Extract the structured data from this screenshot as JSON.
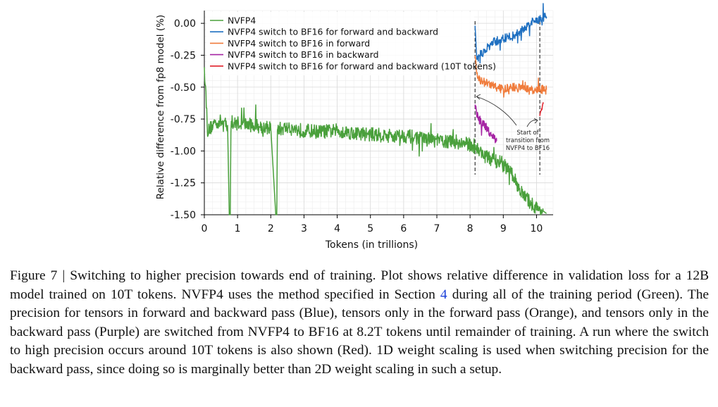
{
  "chart_data": {
    "type": "line",
    "xlabel": "Tokens (in trillions)",
    "ylabel": "Relative difference from fp8 model (%)",
    "xlim": [
      0,
      10.5
    ],
    "ylim": [
      -1.5,
      0.1
    ],
    "xticks": [
      0,
      1,
      2,
      3,
      4,
      5,
      6,
      7,
      8,
      9,
      10
    ],
    "yticks": [
      0.0,
      -0.25,
      -0.5,
      -0.75,
      -1.0,
      -1.25,
      -1.5
    ],
    "ytick_labels": [
      "0.00",
      "-0.25",
      "-0.50",
      "-0.75",
      "-1.00",
      "-1.25",
      "-1.50"
    ],
    "grid": true,
    "legend_position": "top-left",
    "series": [
      {
        "name": "NVFP4",
        "color": "#4aa03c",
        "x": [
          0,
          0.1,
          0.3,
          0.5,
          0.7,
          0.75,
          0.78,
          0.8,
          1.0,
          1.5,
          2.0,
          2.15,
          2.18,
          2.2,
          2.5,
          3.0,
          3.5,
          4.0,
          4.5,
          5.0,
          5.5,
          6.0,
          6.5,
          7.0,
          7.5,
          8.0,
          8.2,
          8.5,
          9.0,
          9.3,
          9.6,
          9.8,
          10.0,
          10.2,
          10.3
        ],
        "y": [
          -0.3,
          -0.85,
          -0.78,
          -0.77,
          -0.8,
          -1.5,
          -1.5,
          -0.8,
          -0.78,
          -0.8,
          -0.82,
          -1.5,
          -1.5,
          -0.83,
          -0.82,
          -0.84,
          -0.85,
          -0.84,
          -0.86,
          -0.87,
          -0.88,
          -0.88,
          -0.9,
          -0.92,
          -0.93,
          -0.95,
          -0.98,
          -1.05,
          -1.1,
          -1.2,
          -1.35,
          -1.4,
          -1.45,
          -1.47,
          -1.49
        ]
      },
      {
        "name": "NVFP4 switch to BF16 for forward and backward",
        "color": "#1f70c1",
        "x": [
          8.15,
          8.2,
          8.3,
          8.5,
          8.7,
          9.0,
          9.3,
          9.6,
          9.8,
          10.0,
          10.2,
          10.3
        ],
        "y": [
          -0.02,
          -0.3,
          -0.25,
          -0.2,
          -0.15,
          -0.12,
          -0.1,
          -0.05,
          0.0,
          0.02,
          0.05,
          0.05
        ]
      },
      {
        "name": "NVFP4 switch to BF16 in forward",
        "color": "#f07c3c",
        "x": [
          8.15,
          8.2,
          8.3,
          8.5,
          8.8,
          9.0,
          9.3,
          9.6,
          9.9,
          10.1,
          10.3
        ],
        "y": [
          -0.25,
          -0.38,
          -0.45,
          -0.47,
          -0.5,
          -0.52,
          -0.5,
          -0.51,
          -0.53,
          -0.52,
          -0.52
        ]
      },
      {
        "name": "NVFP4 switch to BF16 in backward",
        "color": "#a626a4",
        "x": [
          8.15,
          8.2,
          8.4,
          8.6,
          8.8
        ],
        "y": [
          -0.65,
          -0.72,
          -0.8,
          -0.85,
          -0.92
        ]
      },
      {
        "name": "NVFP4 switch to BF16 for forward and backward (10T tokens)",
        "color": "#e0202a",
        "x": [
          10.1,
          10.15,
          10.2
        ],
        "y": [
          -0.72,
          -0.68,
          -0.63
        ]
      }
    ],
    "vlines": [
      8.15,
      10.1
    ],
    "annotation": "Start of\ntransition from\nNVFP4 to BF16"
  },
  "caption": {
    "label": "Figure 7",
    "separator": " | ",
    "text_part1": "Switching to higher precision towards end of training. Plot shows relative difference in validation loss for a 12B model trained on 10T tokens. NVFP4 uses the method specified in Section ",
    "section_ref": "4",
    "text_part2": " during all of the training period (Green). The precision for tensors in forward and backward pass (Blue), tensors only in the forward pass (Orange), and tensors only in the backward pass (Purple) are switched from NVFP4 to BF16 at 8.2T tokens until remainder of training. A run where the switch to high precision occurs around 10T tokens is also shown (Red). 1D weight scaling is used when switching precision for the backward pass, since doing so is marginally better than 2D weight scaling in such a setup."
  }
}
